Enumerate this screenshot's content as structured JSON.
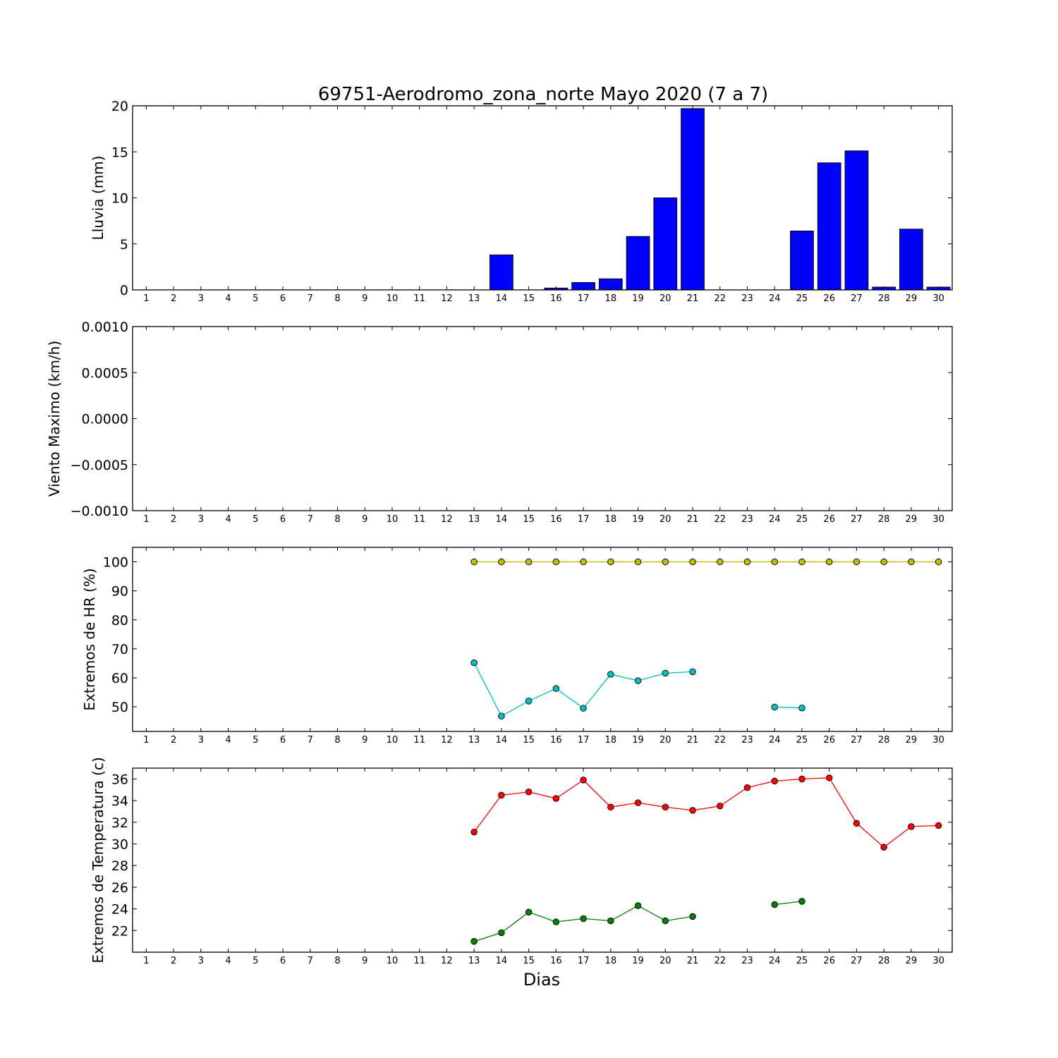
{
  "figure": {
    "title": "69751-Aerodromo_zona_norte Mayo 2020  (7 a 7)",
    "xlabel": "Dias"
  },
  "chart_data": [
    {
      "type": "bar",
      "ylabel": "Lluvia (mm)",
      "ylim": [
        0,
        20
      ],
      "yticks": [
        "0",
        "5",
        "10",
        "15",
        "20"
      ],
      "ytick_values": [
        0,
        5,
        10,
        15,
        20
      ],
      "categories": [
        "1",
        "2",
        "3",
        "4",
        "5",
        "6",
        "7",
        "8",
        "9",
        "10",
        "11",
        "12",
        "13",
        "14",
        "15",
        "16",
        "17",
        "18",
        "19",
        "20",
        "21",
        "22",
        "23",
        "24",
        "25",
        "26",
        "27",
        "28",
        "29",
        "30"
      ],
      "values": [
        0,
        0,
        0,
        0,
        0,
        0,
        0,
        0,
        0,
        0,
        0,
        0,
        0,
        3.8,
        0,
        0.2,
        0.8,
        1.2,
        5.8,
        10.0,
        19.7,
        0,
        0,
        0,
        6.4,
        13.8,
        15.1,
        0.3,
        6.6,
        0.3
      ],
      "color": "#0000ff"
    },
    {
      "type": "line",
      "ylabel": "Viento Maximo (km/h)",
      "ylim": [
        -0.001,
        0.001
      ],
      "yticks": [
        "−0.0010",
        "−0.0005",
        "0.0000",
        "0.0005",
        "0.0010"
      ],
      "ytick_values": [
        -0.001,
        -0.0005,
        0,
        0.0005,
        0.001
      ],
      "categories": [
        "1",
        "2",
        "3",
        "4",
        "5",
        "6",
        "7",
        "8",
        "9",
        "10",
        "11",
        "12",
        "13",
        "14",
        "15",
        "16",
        "17",
        "18",
        "19",
        "20",
        "21",
        "22",
        "23",
        "24",
        "25",
        "26",
        "27",
        "28",
        "29",
        "30"
      ],
      "series": []
    },
    {
      "type": "line",
      "ylabel": "Extremos de HR (%)",
      "ylim": [
        41.5,
        105
      ],
      "yticks": [
        "50",
        "60",
        "70",
        "80",
        "90",
        "100"
      ],
      "ytick_values": [
        50,
        60,
        70,
        80,
        90,
        100
      ],
      "categories": [
        "1",
        "2",
        "3",
        "4",
        "5",
        "6",
        "7",
        "8",
        "9",
        "10",
        "11",
        "12",
        "13",
        "14",
        "15",
        "16",
        "17",
        "18",
        "19",
        "20",
        "21",
        "22",
        "23",
        "24",
        "25",
        "26",
        "27",
        "28",
        "29",
        "30"
      ],
      "series": [
        {
          "color": "#bfbf00",
          "x": [
            13,
            14,
            15,
            16,
            17,
            18,
            19,
            20,
            21,
            22,
            23,
            24,
            25,
            26,
            27,
            28,
            29,
            30
          ],
          "y": [
            100,
            100,
            100,
            100,
            100,
            100,
            100,
            100,
            100,
            100,
            100,
            100,
            100,
            100,
            100,
            100,
            100,
            100
          ]
        },
        {
          "color": "#00bfbf",
          "x": [
            13,
            14,
            15,
            16,
            17,
            18,
            19,
            20,
            21,
            22,
            23,
            24,
            25
          ],
          "y": [
            65.2,
            46.8,
            52,
            56.3,
            49.5,
            61.2,
            59,
            61.6,
            62.1,
            null,
            null,
            49.9,
            49.6
          ]
        }
      ]
    },
    {
      "type": "line",
      "ylabel": "Extremos de Temperatura (c)",
      "ylim": [
        20,
        37
      ],
      "yticks": [
        "22",
        "24",
        "26",
        "28",
        "30",
        "32",
        "34",
        "36"
      ],
      "ytick_values": [
        22,
        24,
        26,
        28,
        30,
        32,
        34,
        36
      ],
      "categories": [
        "1",
        "2",
        "3",
        "4",
        "5",
        "6",
        "7",
        "8",
        "9",
        "10",
        "11",
        "12",
        "13",
        "14",
        "15",
        "16",
        "17",
        "18",
        "19",
        "20",
        "21",
        "22",
        "23",
        "24",
        "25",
        "26",
        "27",
        "28",
        "29",
        "30"
      ],
      "series": [
        {
          "color": "#ff0000",
          "x": [
            13,
            14,
            15,
            16,
            17,
            18,
            19,
            20,
            21,
            22,
            23,
            24,
            25,
            26,
            27,
            28,
            29,
            30
          ],
          "y": [
            31.1,
            34.5,
            34.8,
            34.2,
            35.9,
            33.4,
            33.8,
            33.4,
            33.1,
            33.5,
            35.2,
            35.8,
            36,
            36.1,
            31.9,
            29.7,
            31.6,
            31.7
          ]
        },
        {
          "color": "#008000",
          "x": [
            13,
            14,
            15,
            16,
            17,
            18,
            19,
            20,
            21,
            22,
            23,
            24,
            25
          ],
          "y": [
            21,
            21.8,
            23.7,
            22.8,
            23.1,
            22.9,
            24.3,
            22.9,
            23.3,
            null,
            null,
            24.4,
            24.7
          ]
        }
      ]
    }
  ]
}
